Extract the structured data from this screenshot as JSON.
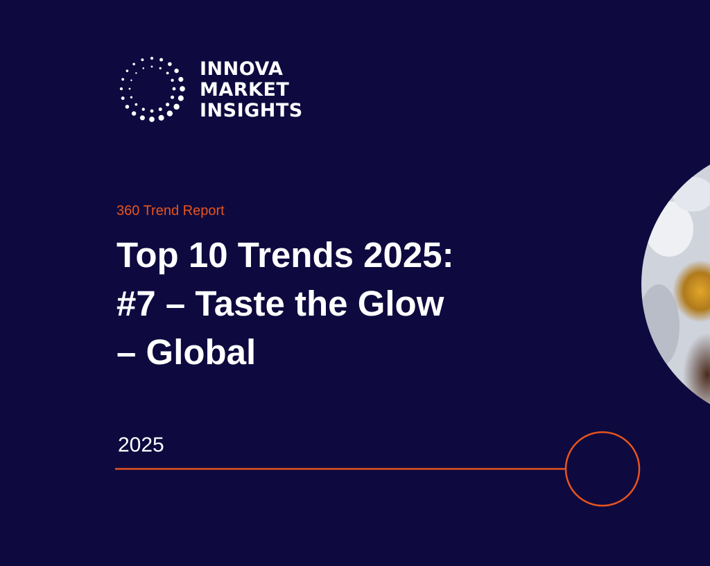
{
  "logo": {
    "lines": [
      "INNOVA",
      "MARKET",
      "INSIGHTS"
    ]
  },
  "report_type": "360 Trend Report",
  "title": {
    "lines": [
      "Top 10 Trends 2025:",
      "#7 – Taste the Glow",
      "– Global"
    ]
  },
  "year": "2025"
}
